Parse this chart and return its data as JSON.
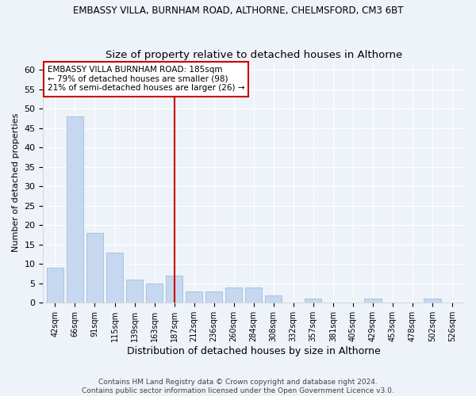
{
  "title1": "EMBASSY VILLA, BURNHAM ROAD, ALTHORNE, CHELMSFORD, CM3 6BT",
  "title2": "Size of property relative to detached houses in Althorne",
  "xlabel": "Distribution of detached houses by size in Althorne",
  "ylabel": "Number of detached properties",
  "bar_labels": [
    "42sqm",
    "66sqm",
    "91sqm",
    "115sqm",
    "139sqm",
    "163sqm",
    "187sqm",
    "212sqm",
    "236sqm",
    "260sqm",
    "284sqm",
    "308sqm",
    "332sqm",
    "357sqm",
    "381sqm",
    "405sqm",
    "429sqm",
    "453sqm",
    "478sqm",
    "502sqm",
    "526sqm"
  ],
  "bar_values": [
    9,
    48,
    18,
    13,
    6,
    5,
    7,
    3,
    3,
    4,
    4,
    2,
    0,
    1,
    0,
    0,
    1,
    0,
    0,
    1,
    0
  ],
  "bar_color": "#c5d8ef",
  "bar_edgecolor": "#a8c4e0",
  "vline_x": 6,
  "vline_color": "#cc0000",
  "annotation_line1": "EMBASSY VILLA BURNHAM ROAD: 185sqm",
  "annotation_line2": "← 79% of detached houses are smaller (98)",
  "annotation_line3": "21% of semi-detached houses are larger (26) →",
  "annotation_box_color": "#ffffff",
  "annotation_box_edgecolor": "#cc0000",
  "ylim": [
    0,
    62
  ],
  "yticks": [
    0,
    5,
    10,
    15,
    20,
    25,
    30,
    35,
    40,
    45,
    50,
    55,
    60
  ],
  "footer": "Contains HM Land Registry data © Crown copyright and database right 2024.\nContains public sector information licensed under the Open Government Licence v3.0.",
  "bg_color": "#eef2f9",
  "grid_color": "#ffffff",
  "title1_fontsize": 8.5,
  "title2_fontsize": 9.5
}
